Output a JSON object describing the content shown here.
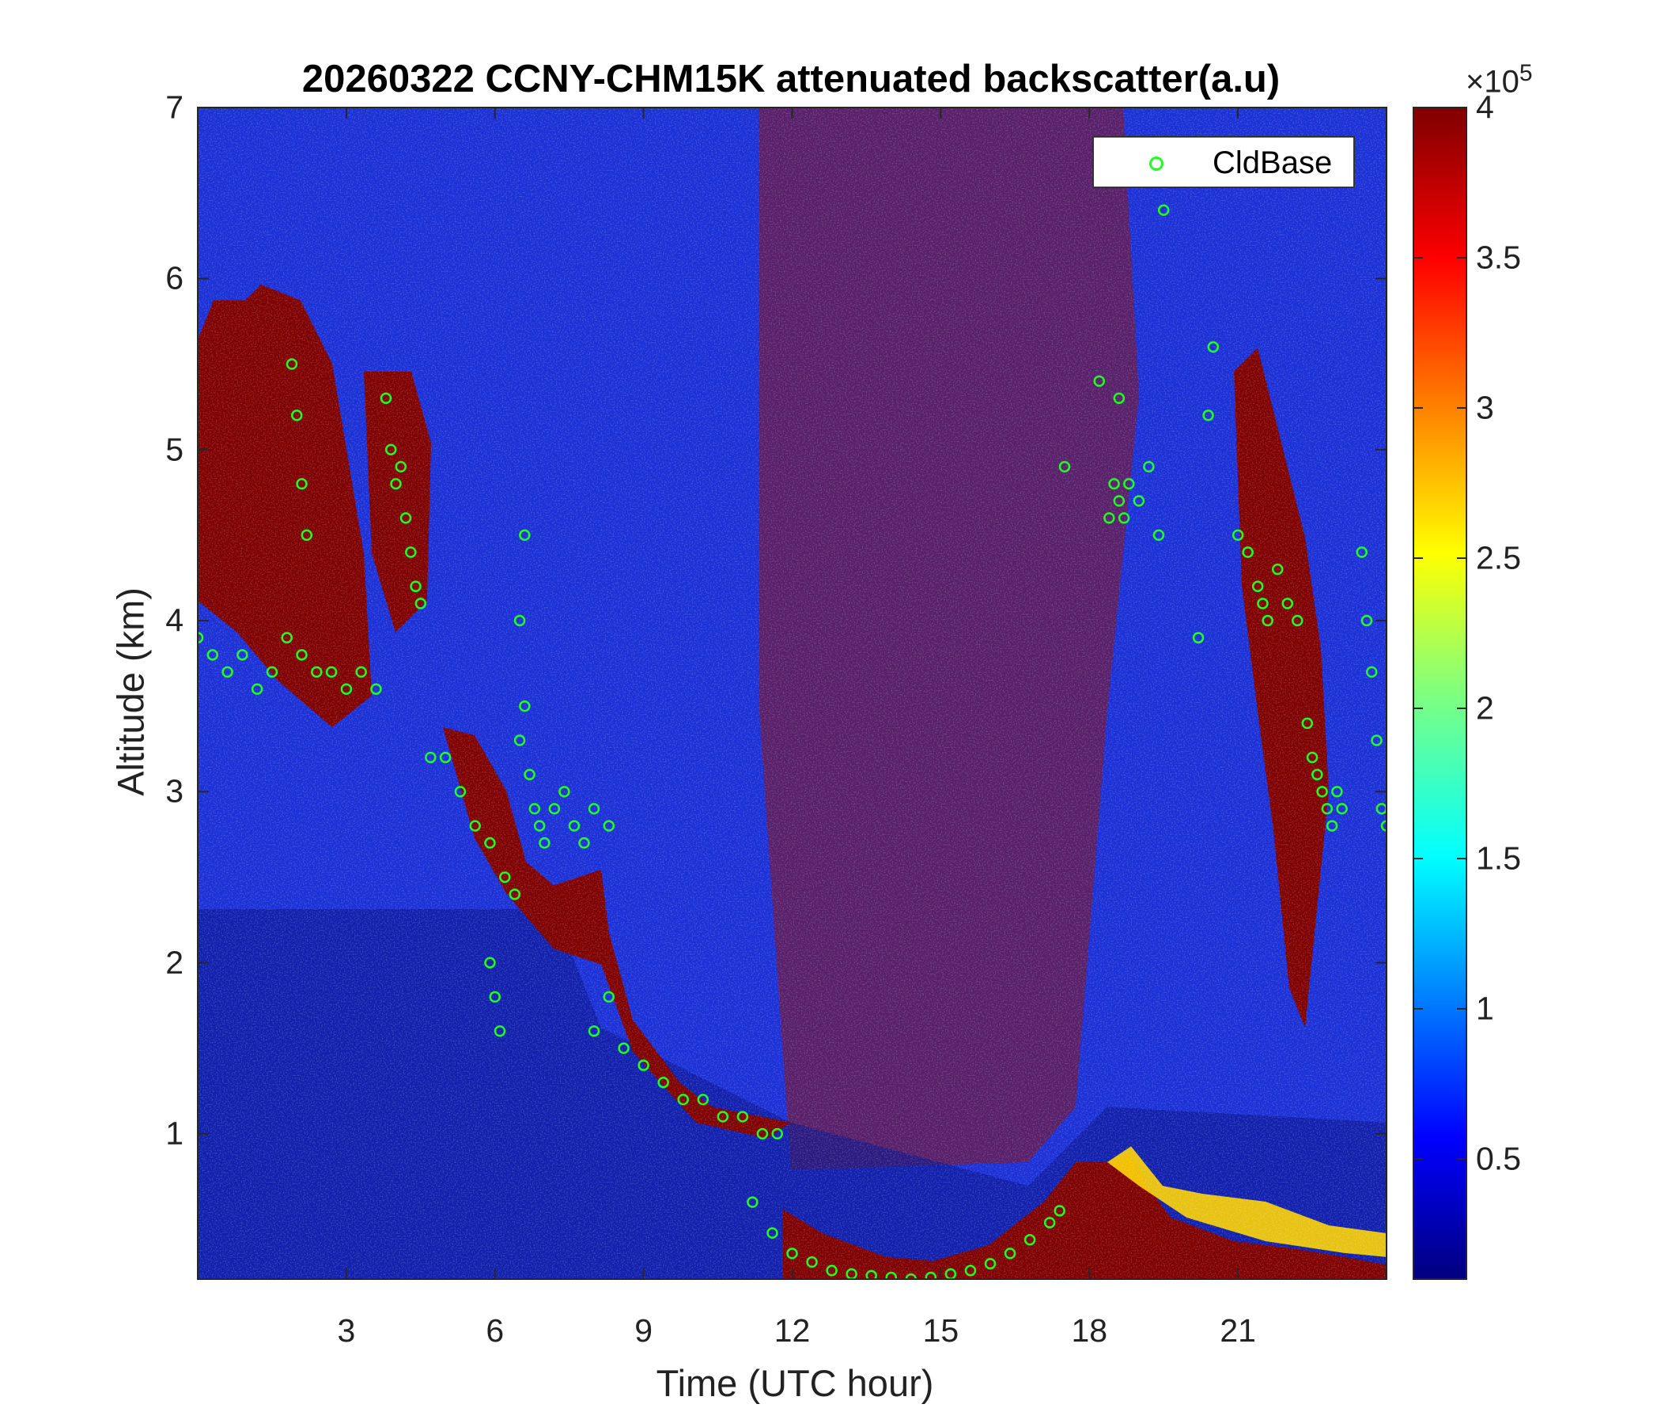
{
  "chart_data": {
    "type": "heatmap",
    "title": "20260322 CCNY-CHM15K attenuated backscatter(a.u)",
    "xlabel": "Time (UTC hour)",
    "ylabel": "Altitude (km)",
    "xlim": [
      0,
      24
    ],
    "ylim": [
      0.15,
      7
    ],
    "x_ticks": [
      3,
      6,
      9,
      12,
      15,
      18,
      21
    ],
    "x_tick_labels": [
      "3",
      "6",
      "9",
      "12",
      "15",
      "18",
      "21"
    ],
    "y_ticks": [
      1,
      2,
      3,
      4,
      5,
      6,
      7
    ],
    "y_tick_labels": [
      "1",
      "2",
      "3",
      "4",
      "5",
      "6",
      "7"
    ],
    "colorbar": {
      "colormap": "jet",
      "range": [
        0.1,
        4
      ],
      "ticks": [
        0.5,
        1,
        1.5,
        2,
        2.5,
        3,
        3.5,
        4
      ],
      "tick_labels": [
        "0.5",
        "1",
        "1.5",
        "2",
        "2.5",
        "3",
        "3.5",
        "4"
      ],
      "exponent_base": "×10",
      "exponent_power": "5"
    },
    "legend": {
      "position": "top-right",
      "entries": [
        "CldBase"
      ]
    },
    "series": [
      {
        "name": "CldBase",
        "marker": "circle",
        "color": "#22ff22",
        "x": [
          0.0,
          0.3,
          0.6,
          0.9,
          1.2,
          1.5,
          1.8,
          2.1,
          2.4,
          2.7,
          3.0,
          3.3,
          3.6,
          1.9,
          2.0,
          2.1,
          2.2,
          3.8,
          3.9,
          4.0,
          4.1,
          4.2,
          4.3,
          4.4,
          4.5,
          4.7,
          5.0,
          5.3,
          5.6,
          5.9,
          6.2,
          6.4,
          6.5,
          6.6,
          6.7,
          6.8,
          6.9,
          7.0,
          7.2,
          7.4,
          7.6,
          7.8,
          8.0,
          8.3,
          5.9,
          6.0,
          6.1,
          6.5,
          6.6,
          8.0,
          8.3,
          8.6,
          9.0,
          9.4,
          9.8,
          10.2,
          10.6,
          11.0,
          11.4,
          11.7,
          11.2,
          11.6,
          12.0,
          12.4,
          12.8,
          13.2,
          13.6,
          14.0,
          14.4,
          14.8,
          15.2,
          15.6,
          16.0,
          16.4,
          16.8,
          17.2,
          17.4,
          17.5,
          18.2,
          18.6,
          18.4,
          18.5,
          18.6,
          18.7,
          18.8,
          19.0,
          19.2,
          19.4,
          19.5,
          20.2,
          20.4,
          20.5,
          21.0,
          21.2,
          21.4,
          21.5,
          21.6,
          21.8,
          22.0,
          22.2,
          22.4,
          22.5,
          22.6,
          22.7,
          22.8,
          22.9,
          23.0,
          23.1,
          23.5,
          23.6,
          23.7,
          23.8,
          23.9,
          24.0
        ],
        "y": [
          3.9,
          3.8,
          3.7,
          3.8,
          3.6,
          3.7,
          3.9,
          3.8,
          3.7,
          3.7,
          3.6,
          3.7,
          3.6,
          5.5,
          5.2,
          4.8,
          4.5,
          5.3,
          5.0,
          4.8,
          4.9,
          4.6,
          4.4,
          4.2,
          4.1,
          3.2,
          3.2,
          3.0,
          2.8,
          2.7,
          2.5,
          2.4,
          3.3,
          3.5,
          3.1,
          2.9,
          2.8,
          2.7,
          2.9,
          3.0,
          2.8,
          2.7,
          2.9,
          2.8,
          2.0,
          1.8,
          1.6,
          4.0,
          4.5,
          1.6,
          1.8,
          1.5,
          1.4,
          1.3,
          1.2,
          1.2,
          1.1,
          1.1,
          1.0,
          1.0,
          0.6,
          0.42,
          0.3,
          0.25,
          0.2,
          0.18,
          0.17,
          0.16,
          0.15,
          0.16,
          0.18,
          0.2,
          0.24,
          0.3,
          0.38,
          0.48,
          0.55,
          4.9,
          5.4,
          5.3,
          4.6,
          4.8,
          4.7,
          4.6,
          4.8,
          4.7,
          4.9,
          4.5,
          6.4,
          3.9,
          5.2,
          5.6,
          4.5,
          4.4,
          4.2,
          4.1,
          4.0,
          4.3,
          4.1,
          4.0,
          3.4,
          3.2,
          3.1,
          3.0,
          2.9,
          2.8,
          3.0,
          2.9,
          4.4,
          4.0,
          3.7,
          3.3,
          2.9,
          2.8
        ]
      }
    ]
  }
}
